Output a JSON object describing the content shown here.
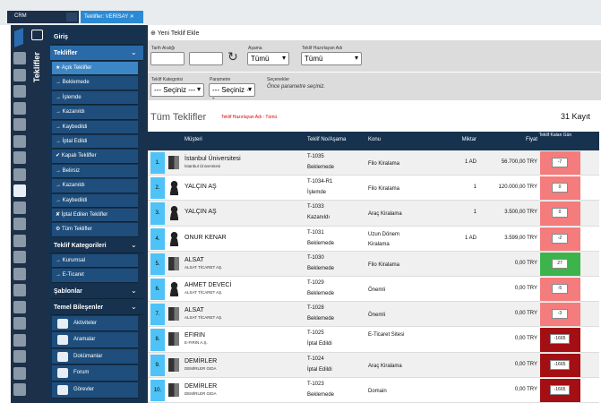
{
  "tabs": [
    "CRM",
    "Teklifler: VERİSAY"
  ],
  "sidebar": {
    "vertical_title": "Teklifler",
    "items": [
      {
        "label": "Giriş",
        "kind": "section"
      },
      {
        "label": "Teklifler",
        "kind": "open"
      },
      {
        "label": "★ Açık Teklifler",
        "kind": "active"
      },
      {
        "label": "→ Beklemede",
        "kind": "sub"
      },
      {
        "label": "→ İşlemde",
        "kind": "sub"
      },
      {
        "label": "→ Kazanıldı",
        "kind": "sub"
      },
      {
        "label": "→ Kaybedildi",
        "kind": "sub"
      },
      {
        "label": "→ İptal Edildi",
        "kind": "sub"
      },
      {
        "label": "✔ Kapalı Teklifler",
        "kind": "sub"
      },
      {
        "label": "→ Belirsiz",
        "kind": "sub"
      },
      {
        "label": "→ Kazanıldı",
        "kind": "sub"
      },
      {
        "label": "→ Kaybedildi",
        "kind": "sub"
      },
      {
        "label": "✘ İptal Edilen Teklifler",
        "kind": "sub"
      },
      {
        "label": "⚙ Tüm Teklifler",
        "kind": "sub"
      },
      {
        "label": "Teklif Kategorileri",
        "kind": "section"
      },
      {
        "label": "→ Kurumsal",
        "kind": "sub"
      },
      {
        "label": "→ E-Ticaret",
        "kind": "sub"
      },
      {
        "label": "Şablonlar",
        "kind": "section"
      },
      {
        "label": "Temel Bileşenler",
        "kind": "section"
      },
      {
        "label": "Aktiviteler",
        "kind": "comp"
      },
      {
        "label": "Aramalar",
        "kind": "comp"
      },
      {
        "label": "Dokümanlar",
        "kind": "comp"
      },
      {
        "label": "Forum",
        "kind": "comp"
      },
      {
        "label": "Görevler",
        "kind": "comp"
      }
    ]
  },
  "toolbar": {
    "add_button": "Yeni Teklif Ekle"
  },
  "filters": {
    "date_label": "Tarih Aralığı",
    "stage_label": "Aşama",
    "stage_value": "Tümü",
    "author_label": "Teklif Hazırlayan Adı",
    "author_value": "Tümü",
    "category_label": "Teklif Kategorisi",
    "category_value": "--- Seçiniz ---",
    "param_label": "Parametre",
    "param_value": "--- Seçiniz ---",
    "options_label": "Seçenekler",
    "options_hint": "Önce parametre seçiniz."
  },
  "list": {
    "title": "Tüm Teklifler",
    "filter_note": "Teklif Hazırlayan Adı : Tümü",
    "count": "31 Kayıt"
  },
  "table": {
    "headers": [
      "Müşteri",
      "Teklif No/Aşama",
      "Konu",
      "Miktar",
      "Fiyat",
      "Teklif Kalan Gün"
    ],
    "rows": [
      {
        "no": "1.",
        "icon": "org",
        "name": "İstanbul Üniversitesi",
        "company": "İstanbul Üniversitesi",
        "code": "T-1035",
        "stage": "Beklemede",
        "subject": "Filo Kiralama",
        "qty": "1 AD",
        "price": "56.700,00 TRY",
        "days": -7,
        "color": "#f47c7c"
      },
      {
        "no": "2.",
        "icon": "person",
        "name": "YALÇIN AŞ",
        "code": "T-1034-R1",
        "stage": "İşlemde",
        "subject": "Filo Kiralama",
        "qty": "1",
        "price": "120.000,00 TRY",
        "days": 0,
        "color": "#f47c7c"
      },
      {
        "no": "3.",
        "icon": "person",
        "name": "YALÇIN AŞ",
        "code": "T-1033",
        "stage": "Kazanıldı",
        "subject": "Araç Kiralama",
        "qty": "1",
        "price": "3.500,00 TRY",
        "days": 0,
        "color": "#f47c7c"
      },
      {
        "no": "4.",
        "icon": "person",
        "name": "ONUR KENAR",
        "code": "T-1031",
        "stage": "Beklemede",
        "subject": "Uzun Dönem Kiralama",
        "qty": "1 AD",
        "price": "3.599,00 TRY",
        "days": -2,
        "color": "#f47c7c"
      },
      {
        "no": "5.",
        "icon": "org",
        "name": "ALSAT",
        "company": "ALSAT TİCARET AŞ.",
        "code": "T-1030",
        "stage": "Beklemede",
        "subject": "Filo Kiralama",
        "price": "0,00 TRY",
        "days": 27,
        "color": "#3cb44b"
      },
      {
        "no": "6.",
        "icon": "person",
        "name": "AHMET DEVECİ",
        "company": "ALSAT TİCARET AŞ.",
        "code": "T-1029",
        "stage": "Beklemede",
        "subject": "Önemli",
        "price": "0,00 TRY",
        "days": -5,
        "color": "#f47c7c"
      },
      {
        "no": "7.",
        "icon": "org",
        "name": "ALSAT",
        "company": "ALSAT TİCARET AŞ.",
        "code": "T-1028",
        "stage": "Beklemede",
        "subject": "Önemli",
        "price": "0,00 TRY",
        "days": -3,
        "color": "#f47c7c"
      },
      {
        "no": "8.",
        "icon": "org",
        "name": "EFIRIN",
        "company": "E-FIRIN A.Ş.",
        "code": "T-1025",
        "stage": "İptal Edildi",
        "subject": "E-Ticaret Sitesi",
        "price": "0,00 TRY",
        "days": -1665,
        "color": "#a30f12"
      },
      {
        "no": "9.",
        "icon": "org",
        "name": "DEMİRLER",
        "company": "DEMİRLER GIDA",
        "code": "T-1024",
        "stage": "İptal Edildi",
        "subject": "Araç Kiralama",
        "price": "0,00 TRY",
        "days": -1665,
        "color": "#a30f12"
      },
      {
        "no": "10.",
        "icon": "org",
        "name": "DEMİRLER",
        "company": "DEMİRLER GIDA",
        "code": "T-1023",
        "stage": "Beklemede",
        "subject": "Domain",
        "price": "0,00 TRY",
        "days": -1665,
        "color": "#a30f12"
      }
    ]
  }
}
